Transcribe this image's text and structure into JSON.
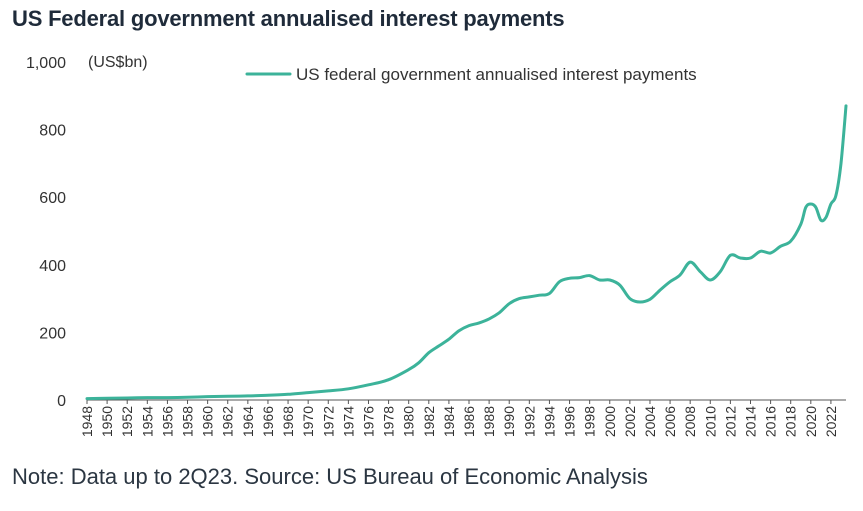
{
  "title": "US Federal government annualised interest payments",
  "note": "Note: Data up to 2Q23. Source: US Bureau of Economic Analysis",
  "colors": {
    "series": "#3cb39a",
    "axis": "#555555",
    "text": "#333333"
  },
  "chart_data": {
    "type": "line",
    "title": "US Federal government annualised interest payments",
    "ylabel": "(US$bn)",
    "xlabel": "",
    "ylim": [
      0,
      1000
    ],
    "xlim": [
      1948,
      2023.5
    ],
    "y_ticks": [
      0,
      200,
      400,
      600,
      800,
      1000
    ],
    "y_tick_labels": [
      "0",
      "200",
      "400",
      "600",
      "800",
      "1,000"
    ],
    "x_ticks": [
      1948,
      1950,
      1952,
      1954,
      1956,
      1958,
      1960,
      1962,
      1964,
      1966,
      1968,
      1970,
      1972,
      1974,
      1976,
      1978,
      1980,
      1982,
      1984,
      1986,
      1988,
      1990,
      1992,
      1994,
      1996,
      1998,
      2000,
      2002,
      2004,
      2006,
      2008,
      2010,
      2012,
      2014,
      2016,
      2018,
      2020,
      2022
    ],
    "legend_position": "top",
    "grid": false,
    "series": [
      {
        "name": "US federal government annualised interest payments",
        "x": [
          1948,
          1950,
          1952,
          1954,
          1956,
          1958,
          1960,
          1962,
          1964,
          1966,
          1968,
          1970,
          1972,
          1974,
          1976,
          1978,
          1980,
          1981,
          1982,
          1983,
          1984,
          1985,
          1986,
          1987,
          1988,
          1989,
          1990,
          1991,
          1992,
          1993,
          1994,
          1995,
          1996,
          1997,
          1998,
          1999,
          2000,
          2001,
          2002,
          2003,
          2004,
          2005,
          2006,
          2007,
          2008,
          2009,
          2010,
          2011,
          2012,
          2013,
          2014,
          2015,
          2016,
          2017,
          2018,
          2019,
          2019.5,
          2020,
          2020.5,
          2021,
          2021.5,
          2022,
          2022.5,
          2023,
          2023.5
        ],
        "values": [
          4,
          5,
          6,
          7,
          7,
          8,
          10,
          11,
          12,
          14,
          17,
          22,
          27,
          33,
          45,
          60,
          90,
          110,
          140,
          160,
          180,
          205,
          220,
          228,
          240,
          258,
          285,
          300,
          305,
          310,
          315,
          350,
          360,
          362,
          368,
          355,
          355,
          340,
          300,
          290,
          298,
          325,
          350,
          370,
          408,
          380,
          355,
          380,
          428,
          420,
          420,
          440,
          435,
          455,
          470,
          520,
          570,
          580,
          570,
          532,
          540,
          580,
          605,
          700,
          870
        ]
      }
    ]
  }
}
